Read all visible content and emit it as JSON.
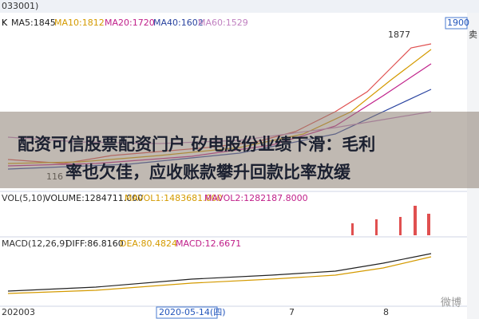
{
  "header": {
    "code": "033001)",
    "sell": "卖",
    "price_box": "1900"
  },
  "ma_row": {
    "k": "K",
    "ma5": "MA5:1845",
    "ma10": "MA10:1812",
    "ma20": "MA20:1720",
    "ma40": "MA40:1602",
    "ma60": "MA60:1529"
  },
  "price_labels": {
    "high": "1877",
    "low": "116"
  },
  "vol_row": {
    "vol": "VOL(5,10)",
    "volume": "VOLUME:1284711.000",
    "mavol1": "MAVOL1:1483681.000",
    "mavol2": "MAVOL2:1282187.8000"
  },
  "macd_row": {
    "macd": "MACD(12,26,9)",
    "diff": "DIFF:86.8160",
    "dea": "DEA:80.4824",
    "value": "MACD:12.6671"
  },
  "x_axis": {
    "start": "202003",
    "cursor": "2020-05-14(四)",
    "m7": "7",
    "m8": "8"
  },
  "headline": {
    "line1": "配资可信股票配资门户 矽电股份业绩下滑：毛利",
    "line2": "率也欠佳，应收账款攀升回款比率放缓"
  },
  "watermark": "微博"
}
